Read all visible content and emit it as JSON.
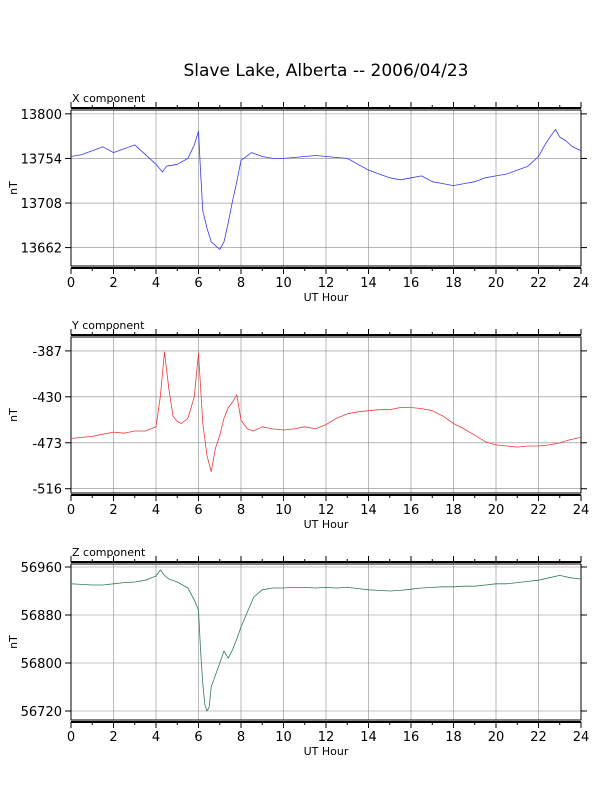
{
  "page": {
    "title": "Slave Lake, Alberta -- 2006/04/23"
  },
  "chart_data": [
    {
      "type": "line",
      "title": "X component",
      "xlabel": "UT Hour",
      "ylabel": "nT",
      "xlim": [
        0,
        24
      ],
      "ylim": [
        13643,
        13804
      ],
      "x_ticks": [
        0,
        2,
        4,
        6,
        8,
        10,
        12,
        14,
        16,
        18,
        20,
        22,
        24
      ],
      "y_ticks": [
        13800,
        13754,
        13708,
        13662
      ],
      "grid": true,
      "color": "#3a3aee",
      "series": [
        {
          "x": [
            0,
            0.5,
            1,
            1.5,
            2,
            2.5,
            3,
            3.5,
            4,
            4.3,
            4.5,
            5,
            5.5,
            5.8,
            6,
            6.1,
            6.2,
            6.4,
            6.6,
            6.8,
            7,
            7.2,
            7.4,
            7.6,
            7.8,
            8,
            8.5,
            9,
            9.5,
            10,
            10.5,
            11,
            11.5,
            12,
            12.5,
            13,
            13.5,
            14,
            14.5,
            15,
            15.5,
            16,
            16.5,
            17,
            17.5,
            18,
            18.5,
            19,
            19.5,
            20,
            20.5,
            21,
            21.5,
            22,
            22.3,
            22.6,
            22.8,
            23,
            23.3,
            23.6,
            24
          ],
          "y": [
            13756,
            13758,
            13762,
            13766,
            13760,
            13764,
            13768,
            13758,
            13748,
            13740,
            13746,
            13748,
            13754,
            13768,
            13782,
            13740,
            13700,
            13682,
            13668,
            13664,
            13660,
            13668,
            13688,
            13710,
            13730,
            13752,
            13760,
            13756,
            13754,
            13754,
            13755,
            13756,
            13757,
            13756,
            13755,
            13754,
            13748,
            13742,
            13738,
            13734,
            13732,
            13734,
            13736,
            13730,
            13728,
            13726,
            13728,
            13730,
            13734,
            13736,
            13738,
            13742,
            13746,
            13756,
            13768,
            13778,
            13784,
            13776,
            13772,
            13766,
            13762
          ]
        }
      ]
    },
    {
      "type": "line",
      "title": "Y component",
      "xlabel": "UT Hour",
      "ylabel": "nT",
      "xlim": [
        0,
        24
      ],
      "ylim": [
        -520,
        -374
      ],
      "x_ticks": [
        0,
        2,
        4,
        6,
        8,
        10,
        12,
        14,
        16,
        18,
        20,
        22,
        24
      ],
      "y_ticks": [
        -387,
        -430,
        -473,
        -516
      ],
      "grid": true,
      "color": "#ee3a3a",
      "series": [
        {
          "x": [
            0,
            0.5,
            1,
            1.5,
            2,
            2.5,
            3,
            3.5,
            4,
            4.2,
            4.4,
            4.6,
            4.8,
            5,
            5.2,
            5.5,
            5.8,
            6,
            6.2,
            6.4,
            6.6,
            6.8,
            7,
            7.2,
            7.4,
            7.6,
            7.8,
            8,
            8.3,
            8.6,
            9,
            9.5,
            10,
            10.5,
            11,
            11.5,
            12,
            12.5,
            13,
            13.5,
            14,
            14.5,
            15,
            15.5,
            16,
            16.5,
            17,
            17.5,
            18,
            18.5,
            19,
            19.5,
            20,
            20.5,
            21,
            21.5,
            22,
            22.5,
            23,
            23.5,
            24
          ],
          "y": [
            -469,
            -468,
            -467,
            -465,
            -463,
            -464,
            -462,
            -462,
            -458,
            -430,
            -388,
            -422,
            -448,
            -453,
            -455,
            -450,
            -430,
            -389,
            -455,
            -485,
            -500,
            -478,
            -466,
            -450,
            -440,
            -435,
            -428,
            -452,
            -460,
            -462,
            -458,
            -460,
            -461,
            -460,
            -458,
            -460,
            -456,
            -450,
            -446,
            -444,
            -443,
            -442,
            -442,
            -440,
            -440,
            -441,
            -443,
            -448,
            -455,
            -460,
            -466,
            -472,
            -475,
            -476,
            -477,
            -476,
            -476,
            -475,
            -473,
            -470,
            -468
          ]
        }
      ]
    },
    {
      "type": "line",
      "title": "Z component",
      "xlabel": "UT Hour",
      "ylabel": "nT",
      "xlim": [
        0,
        24
      ],
      "ylim": [
        56705,
        56965
      ],
      "x_ticks": [
        0,
        2,
        4,
        6,
        8,
        10,
        12,
        14,
        16,
        18,
        20,
        22,
        24
      ],
      "y_ticks": [
        56960,
        56880,
        56800,
        56720
      ],
      "grid": true,
      "color": "#2e7d55",
      "series": [
        {
          "x": [
            0,
            0.5,
            1,
            1.5,
            2,
            2.5,
            3,
            3.5,
            4,
            4.2,
            4.4,
            4.6,
            5,
            5.5,
            5.8,
            6,
            6.1,
            6.2,
            6.3,
            6.4,
            6.5,
            6.6,
            6.8,
            7,
            7.2,
            7.4,
            7.6,
            7.8,
            8,
            8.3,
            8.6,
            9,
            9.5,
            10,
            10.5,
            11,
            11.5,
            12,
            12.5,
            13,
            13.5,
            14,
            14.5,
            15,
            15.5,
            16,
            16.5,
            17,
            17.5,
            18,
            18.5,
            19,
            19.5,
            20,
            20.5,
            21,
            21.5,
            22,
            22.5,
            23,
            23.5,
            24
          ],
          "y": [
            56932,
            56931,
            56930,
            56930,
            56932,
            56934,
            56935,
            56938,
            56945,
            56955,
            56946,
            56940,
            56935,
            56925,
            56905,
            56888,
            56820,
            56765,
            56730,
            56720,
            56726,
            56760,
            56780,
            56800,
            56820,
            56808,
            56822,
            56840,
            56860,
            56885,
            56910,
            56922,
            56925,
            56925,
            56926,
            56926,
            56925,
            56926,
            56925,
            56926,
            56924,
            56922,
            56921,
            56920,
            56921,
            56923,
            56925,
            56926,
            56927,
            56927,
            56928,
            56928,
            56930,
            56932,
            56932,
            56934,
            56936,
            56938,
            56942,
            56946,
            56942,
            56940
          ]
        }
      ]
    }
  ]
}
